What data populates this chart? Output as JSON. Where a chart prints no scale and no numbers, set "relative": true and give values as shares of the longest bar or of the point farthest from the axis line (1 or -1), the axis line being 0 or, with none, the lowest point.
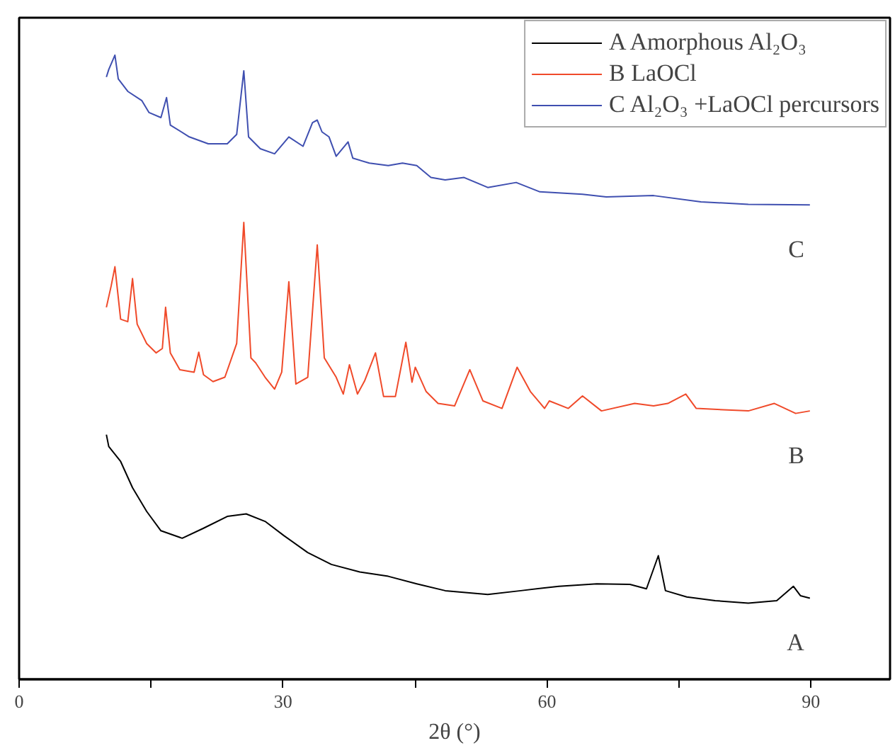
{
  "chart_data": {
    "type": "line",
    "relative": true,
    "xlabel": "2θ (°)",
    "xlim": [
      0,
      99
    ],
    "xticks": [
      0,
      {
        "value": 15,
        "label": null
      },
      30,
      {
        "value": 45,
        "label": null
      },
      60,
      {
        "value": 75,
        "label": null
      },
      90
    ],
    "grid": false,
    "legend": "top right",
    "tick_labels": "x",
    "annotations": [
      "A",
      "B",
      "C"
    ],
    "series": [
      {
        "name": "A Amorphous Al₂O₃",
        "color": "#000000",
        "x": [
          9.92,
          10.19,
          11.54,
          12.89,
          14.5,
          16.12,
          18.54,
          20.96,
          23.66,
          25.81,
          27.96,
          30.12,
          32.81,
          35.5,
          38.73,
          41.96,
          45.2,
          48.43,
          53.27,
          57.04,
          61.35,
          65.66,
          69.43,
          71.31,
          72.66,
          73.47,
          75.89,
          79.12,
          82.89,
          86.12,
          88.01,
          88.81,
          89.89
        ],
        "values": [
          0.392,
          0.373,
          0.349,
          0.307,
          0.269,
          0.238,
          0.226,
          0.242,
          0.261,
          0.265,
          0.253,
          0.23,
          0.203,
          0.184,
          0.172,
          0.165,
          0.153,
          0.142,
          0.136,
          0.142,
          0.149,
          0.153,
          0.152,
          0.145,
          0.198,
          0.142,
          0.132,
          0.126,
          0.122,
          0.126,
          0.149,
          0.134,
          0.13
        ]
      },
      {
        "name": "B LaOCl",
        "color": "#f04a2a",
        "x": [
          9.92,
          10.46,
          10.89,
          11.54,
          12.35,
          12.89,
          13.42,
          14.5,
          15.58,
          16.28,
          16.65,
          17.19,
          18.27,
          19.89,
          20.42,
          20.96,
          22.04,
          23.39,
          24.73,
          25.54,
          26.35,
          26.89,
          27.96,
          29.04,
          29.85,
          30.66,
          31.46,
          32.81,
          33.89,
          34.69,
          36.04,
          36.85,
          37.55,
          38.46,
          39.27,
          40.51,
          41.43,
          42.77,
          43.96,
          44.66,
          45.03,
          46.27,
          47.62,
          49.5,
          51.23,
          52.73,
          54.89,
          56.61,
          58.12,
          59.73,
          60.27,
          62.43,
          64.04,
          66.2,
          69.97,
          72.12,
          73.74,
          75.78,
          76.97,
          82.89,
          85.85,
          88.27,
          89.89
        ],
        "values": [
          0.596,
          0.63,
          0.661,
          0.577,
          0.573,
          0.642,
          0.569,
          0.538,
          0.523,
          0.53,
          0.596,
          0.523,
          0.496,
          0.492,
          0.524,
          0.488,
          0.477,
          0.484,
          0.538,
          0.732,
          0.515,
          0.507,
          0.484,
          0.465,
          0.492,
          0.637,
          0.473,
          0.484,
          0.696,
          0.515,
          0.484,
          0.457,
          0.504,
          0.457,
          0.478,
          0.523,
          0.453,
          0.453,
          0.54,
          0.476,
          0.5,
          0.461,
          0.442,
          0.438,
          0.496,
          0.446,
          0.434,
          0.5,
          0.461,
          0.434,
          0.446,
          0.434,
          0.454,
          0.43,
          0.442,
          0.438,
          0.442,
          0.457,
          0.434,
          0.43,
          0.442,
          0.426,
          0.43
        ]
      },
      {
        "name": "C Al₂O₃ +LaOCl percursors",
        "color": "#3f4fb0",
        "x": [
          9.92,
          10.19,
          10.89,
          11.27,
          12.35,
          13.96,
          14.77,
          16.12,
          16.76,
          17.19,
          19.35,
          21.5,
          23.66,
          24.73,
          25.54,
          26.08,
          27.42,
          29.04,
          30.66,
          32.27,
          33.35,
          33.89,
          34.43,
          35.23,
          36.04,
          37.39,
          37.93,
          39.81,
          41.96,
          43.58,
          45.2,
          46.81,
          48.43,
          50.58,
          53.27,
          56.5,
          59.2,
          64.04,
          66.74,
          72.12,
          77.51,
          82.89,
          89.89
        ],
        "values": [
          0.965,
          0.977,
          1.0,
          0.962,
          0.942,
          0.927,
          0.908,
          0.9,
          0.932,
          0.888,
          0.869,
          0.858,
          0.858,
          0.873,
          0.975,
          0.869,
          0.85,
          0.842,
          0.869,
          0.854,
          0.892,
          0.896,
          0.877,
          0.869,
          0.838,
          0.861,
          0.835,
          0.827,
          0.823,
          0.827,
          0.823,
          0.804,
          0.8,
          0.804,
          0.788,
          0.796,
          0.781,
          0.777,
          0.773,
          0.775,
          0.765,
          0.761,
          0.76
        ]
      }
    ]
  }
}
